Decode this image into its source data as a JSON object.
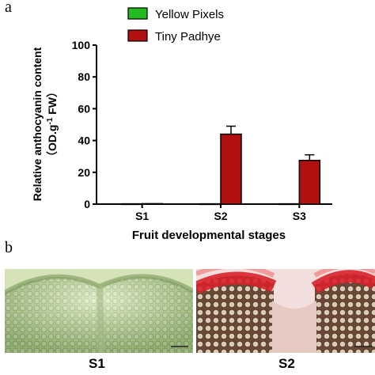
{
  "panel_labels": {
    "a": "a",
    "b": "b"
  },
  "chart_data": {
    "type": "bar",
    "categories": [
      "S1",
      "S2",
      "S3"
    ],
    "series": [
      {
        "name": "Yellow Pixels",
        "color": "#22bb22",
        "values": [
          0.2,
          0.2,
          0.2
        ],
        "errors": [
          0,
          0,
          0
        ]
      },
      {
        "name": "Tiny Padhye",
        "color": "#b01010",
        "values": [
          0.3,
          44,
          27.5
        ],
        "errors": [
          0,
          5,
          3.5
        ]
      }
    ],
    "ylim": [
      0,
      100
    ],
    "yticks": [
      "0",
      "20",
      "40",
      "60",
      "80",
      "100"
    ],
    "ylabel_line1": "Relative anthocyanin content",
    "ylabel_line2_parts": [
      "（OD.g",
      "-1",
      " FW）"
    ],
    "xlabel": "Fruit developmental stages",
    "legend_position": "top"
  },
  "photos": [
    {
      "caption": "S1",
      "description_icon": "green-fruit-section"
    },
    {
      "caption": "S2",
      "description_icon": "red-fruit-section"
    }
  ]
}
